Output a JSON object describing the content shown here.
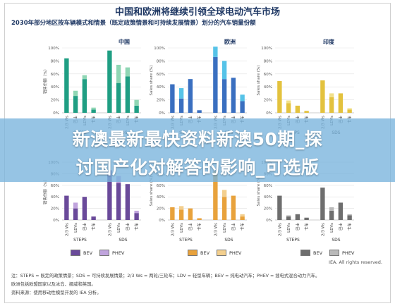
{
  "header": {
    "title": "中国和欧洲将继续引领全球电动汽车市场",
    "subtitle": "2030年部分地区按车辆模式和情景（既定政策情景和可持续发展情景）划分的汽车销量份额"
  },
  "chart_data": [
    {
      "type": "bar",
      "region": "中国",
      "ylabel": "销售份额（%）",
      "yticks": [
        "0%",
        "20%",
        "40%",
        "60%",
        "80%",
        "100%"
      ],
      "ylim": [
        0,
        100
      ],
      "categories": [
        "2/3 Ws",
        "巴士",
        "LDVs",
        "卡车",
        "2/3 Ws",
        "巴士",
        "LDVs",
        "卡车"
      ],
      "scenarios": [
        "STEPS",
        "SDS"
      ],
      "series": [
        {
          "name": "BEV",
          "values": [
            84,
            26,
            52,
            5,
            96,
            46,
            56,
            11
          ]
        },
        {
          "name": "PHEV",
          "values": [
            0,
            8,
            6,
            3,
            0,
            28,
            14,
            9
          ]
        }
      ]
    },
    {
      "type": "bar",
      "region": "欧洲",
      "ylabel": "Sales share (%)",
      "yticks": [
        "0%",
        "20%",
        "40%",
        "60%",
        "80%",
        "100%"
      ],
      "ylim": [
        0,
        100
      ],
      "categories": [
        "2/3 Ws",
        "LDVs",
        "巴士",
        "卡车",
        "2/3 Ws",
        "LDVs",
        "巴士",
        "卡车"
      ],
      "scenarios": [
        "STEPS",
        "SDS"
      ],
      "series": [
        {
          "name": "BEV",
          "values": [
            44,
            22,
            52,
            4,
            86,
            52,
            54,
            18
          ]
        },
        {
          "name": "PHEV",
          "values": [
            0,
            16,
            0,
            0,
            16,
            28,
            0,
            10
          ]
        }
      ]
    },
    {
      "type": "bar",
      "region": "印度",
      "ylabel": "Sales share (%)",
      "yticks": [
        "0%",
        "20%",
        "40%",
        "60%",
        "80%",
        "100%"
      ],
      "ylim": [
        0,
        100
      ],
      "categories": [
        "2/3 Ws",
        "LDVs",
        "巴士",
        "卡车",
        "2/3 Ws",
        "LDVs",
        "巴士",
        "卡车"
      ],
      "scenarios": [
        "STEPS",
        "SDS"
      ],
      "series": [
        {
          "name": "BEV",
          "values": [
            49,
            15,
            11,
            3,
            50,
            24,
            30,
            5
          ]
        },
        {
          "name": "PHEV",
          "values": [
            0,
            4,
            0,
            0,
            0,
            6,
            0,
            2
          ]
        }
      ]
    },
    {
      "type": "bar",
      "region": "",
      "ylabel": "销售份额（%）",
      "yticks": [
        "0%",
        "20%",
        "40%",
        "60%",
        "80%",
        "100%"
      ],
      "ylim": [
        0,
        100
      ],
      "categories": [
        "2/3 Ws",
        "LDVs",
        "巴士",
        "卡车",
        "2/3 Ws",
        "LDVs",
        "巴士",
        "卡车"
      ],
      "scenarios": [
        "STEPS",
        "SDS"
      ],
      "series": [
        {
          "name": "BEV",
          "values": [
            42,
            20,
            40,
            6,
            86,
            64,
            62,
            12
          ]
        },
        {
          "name": "PHEV",
          "values": [
            0,
            10,
            0,
            0,
            0,
            12,
            0,
            4
          ]
        }
      ]
    },
    {
      "type": "bar",
      "region": "",
      "ylabel": "Sales share (%)",
      "yticks": [
        "0%",
        "20%",
        "40%",
        "60%",
        "80%",
        "100%"
      ],
      "ylim": [
        0,
        100
      ],
      "categories": [
        "2/3 Ws",
        "LDVs",
        "巴士",
        "卡车",
        "2/3 Ws",
        "LDVs",
        "巴士",
        "卡车"
      ],
      "scenarios": [
        "STEPS",
        "SDS"
      ],
      "series": [
        {
          "name": "BEV",
          "values": [
            22,
            18,
            20,
            3,
            84,
            40,
            42,
            6
          ]
        },
        {
          "name": "PHEV",
          "values": [
            0,
            6,
            0,
            0,
            0,
            12,
            0,
            4
          ]
        }
      ]
    },
    {
      "type": "bar",
      "region": "",
      "ylabel": "Sales share (%)",
      "yticks": [
        "0%",
        "20%",
        "40%",
        "60%",
        "80%",
        "100%"
      ],
      "ylim": [
        0,
        100
      ],
      "categories": [
        "2/3 Ws",
        "LDVs",
        "巴士",
        "卡车",
        "2/3 Ws",
        "LDVs",
        "巴士",
        "卡车"
      ],
      "scenarios": [
        "STEPS",
        "SDS"
      ],
      "series": [
        {
          "name": "BEV",
          "values": [
            42,
            6,
            10,
            4,
            56,
            16,
            30,
            8
          ]
        },
        {
          "name": "PHEV",
          "values": [
            0,
            2,
            0,
            0,
            0,
            6,
            0,
            2
          ]
        }
      ]
    }
  ],
  "colors": {
    "row1": {
      "BEV": [
        "#1f9e83",
        "#3a6fc0",
        "#e3c23e"
      ],
      "PHEV": [
        "#8fd6b4",
        "#56c3e8",
        "#f1e08a"
      ]
    },
    "row2": {
      "BEV": [
        "#6a4a9a",
        "#e8a23c",
        "#6e6e6e"
      ],
      "PHEV": [
        "#c0a4dd",
        "#f3cf8e",
        "#b9b9b9"
      ]
    },
    "banner": "#78b4dc"
  },
  "legends": [
    {
      "bev": "BEV",
      "phev": "PHEV"
    },
    {
      "bev": "BEV",
      "phev": "PHEV"
    },
    {
      "bev": "BEV",
      "phev": "PHEV"
    }
  ],
  "notes": {
    "line1": "注：STEPS = 既定的政策情景；SDS = 可持续发展情景；2/3 Ws = 两轮/三轮车；LDV = 轻型车辆；BEV = 纯电动汽车；PHEV = 插电式混合动力汽车。",
    "line2": "欧洲包括欧盟国家以及冰岛、挪威和英国。",
    "line3": "资料来源：使用移动性模型开发的 IEA 分析。"
  },
  "source": "IEA. All rights reserved.",
  "banner": {
    "line1": "新澳最新最快资料新澳50期_探",
    "line2": "讨国产化对解答的影响_可选版"
  }
}
